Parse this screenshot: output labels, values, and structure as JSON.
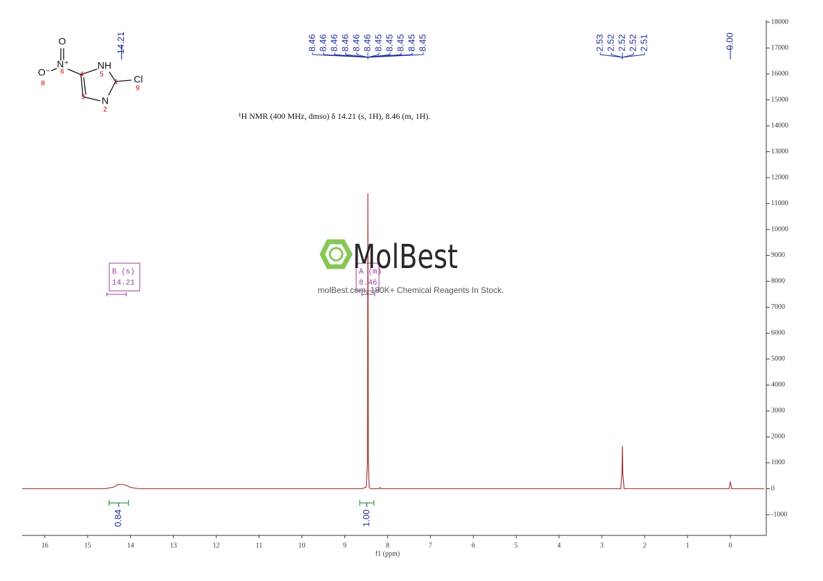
{
  "chart_data": {
    "type": "nmr",
    "title": "¹H NMR (400 MHz, dmso) δ 14.21 (s, 1H), 8.46 (m, 1H).",
    "x_label": "f1 (ppm)",
    "xlim": [
      16.53,
      -0.79
    ],
    "xticks": [
      16,
      15,
      14,
      13,
      12,
      11,
      10,
      9,
      8,
      7,
      6,
      5,
      4,
      3,
      2,
      1,
      0
    ],
    "ylim": [
      -1800,
      18000
    ],
    "yticks": [
      -1000,
      0,
      1000,
      2000,
      3000,
      4000,
      5000,
      6000,
      7000,
      8000,
      9000,
      10000,
      11000,
      12000,
      13000,
      14000,
      15000,
      16000,
      17000,
      18000
    ],
    "x": [
      16.53,
      14.6,
      14.4,
      14.3,
      14.21,
      14.1,
      14.0,
      13.8,
      8.6,
      8.5,
      8.47,
      8.46,
      8.45,
      8.43,
      8.4,
      8.2,
      8.18,
      8.16,
      2.56,
      2.53,
      2.52,
      2.51,
      2.48,
      0.03,
      0,
      -0.03,
      -0.79
    ],
    "series": [
      {
        "color": "#a83232",
        "values": [
          0,
          0,
          60,
          150,
          170,
          130,
          50,
          0,
          0,
          60,
          1000,
          11400,
          1000,
          60,
          0,
          0,
          50,
          0,
          0,
          600,
          1650,
          600,
          0,
          0,
          280,
          0,
          0
        ]
      }
    ],
    "peak_groups": [
      {
        "ppm": 14.21,
        "labels": [
          "14.21"
        ]
      },
      {
        "ppm": 8.46,
        "labels": [
          "8.46",
          "8.46",
          "8.46",
          "8.46",
          "8.46",
          "8.46",
          "8.45",
          "8.45",
          "8.45",
          "8.45",
          "8.45"
        ]
      },
      {
        "ppm": 2.52,
        "labels": [
          "2.53",
          "2.52",
          "2.52",
          "2.52",
          "2.51"
        ]
      },
      {
        "ppm": 0,
        "labels": [
          "-0.00"
        ]
      }
    ],
    "integrals": [
      {
        "from": 14.5,
        "to": 14.05,
        "value": 0.84,
        "label": "0.84"
      },
      {
        "from": 8.65,
        "to": 8.32,
        "value": 1,
        "label": "1.00"
      }
    ],
    "multiplets": [
      {
        "name": "B (s)",
        "shift": "14.21",
        "from": 14.55,
        "to": 14.1
      },
      {
        "name": "A (m)",
        "shift": "8.46",
        "from": 8.6,
        "to": 8.3
      }
    ],
    "structure": {
      "atoms": [
        "O",
        "N⁺",
        "O⁻",
        "NH",
        "Cl",
        "N"
      ],
      "numbers": [
        "8",
        "6",
        "4",
        "5",
        "1",
        "9",
        "3",
        "2"
      ]
    },
    "watermark": {
      "brand": "MolBest",
      "tagline": "molBest.com, 180K+ Chemical Reagents In Stock."
    }
  }
}
